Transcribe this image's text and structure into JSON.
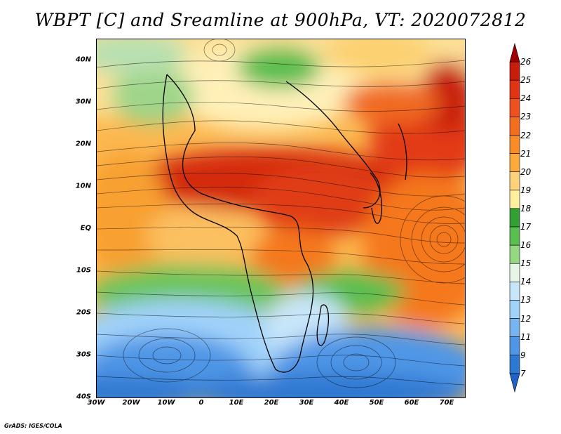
{
  "title": "WBPT [C] and Sreamline at 900hPa, VT: 2020072812",
  "credit": "GrADS: IGES/COLA",
  "map": {
    "lat_labels": [
      "40N",
      "30N",
      "20N",
      "10N",
      "EQ",
      "10S",
      "20S",
      "30S",
      "40S"
    ],
    "lat_values": [
      40,
      30,
      20,
      10,
      0,
      -10,
      -20,
      -30,
      -40
    ],
    "lon_labels": [
      "30W",
      "20W",
      "10W",
      "0",
      "10E",
      "20E",
      "30E",
      "40E",
      "50E",
      "60E",
      "70E"
    ],
    "lon_values": [
      -30,
      -20,
      -10,
      0,
      10,
      20,
      30,
      40,
      50,
      60,
      70
    ],
    "lat_range": [
      -40,
      45
    ],
    "lon_range": [
      -30,
      75
    ]
  },
  "colorbar": {
    "labels": [
      "26",
      "25",
      "24",
      "23",
      "22",
      "21",
      "20",
      "19",
      "18",
      "17",
      "16",
      "15",
      "14",
      "13",
      "12",
      "11",
      "9",
      "7"
    ],
    "colors": [
      "#a00000",
      "#c81d0a",
      "#e13414",
      "#f0501e",
      "#f56e1e",
      "#fa8c28",
      "#fcaa3c",
      "#fdd27a",
      "#fff0a0",
      "#32a032",
      "#5abe50",
      "#96d782",
      "#e6f5e6",
      "#c8e6fa",
      "#a0d2fa",
      "#78b4f0",
      "#5096e6",
      "#2d78d2",
      "#1e64c8"
    ]
  }
}
